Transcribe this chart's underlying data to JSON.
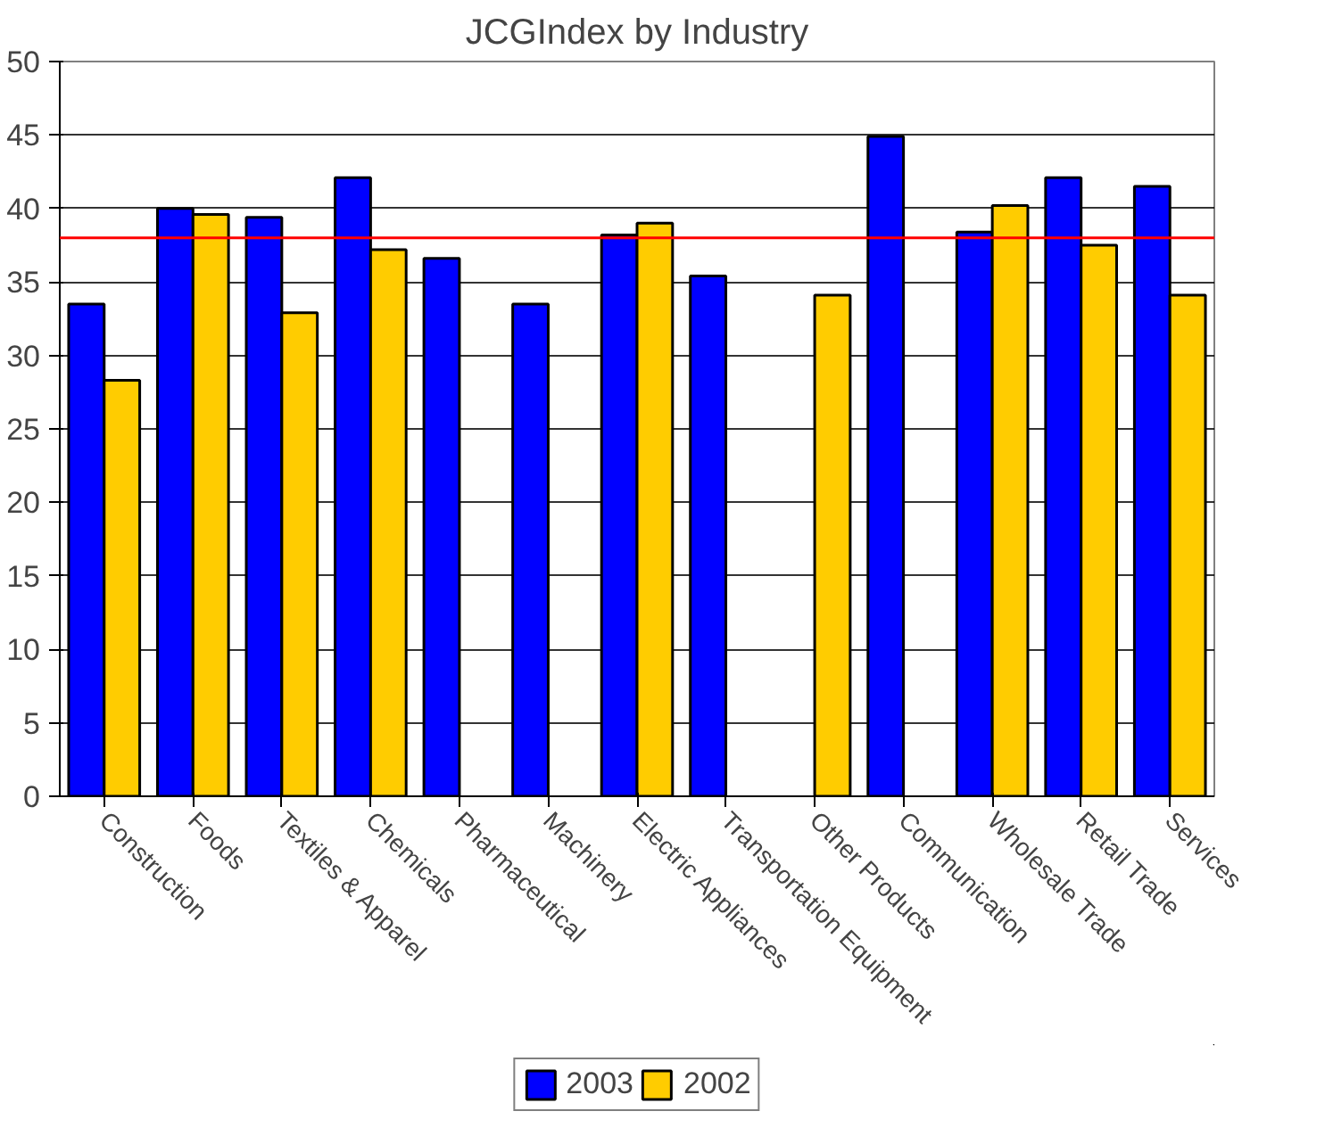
{
  "chart_data": {
    "type": "bar",
    "title": "JCGIndex by Industry",
    "categories": [
      "Construction",
      "Foods",
      "Textiles & Apparel",
      "Chemicals",
      "Pharmaceutical",
      "Machinery",
      "Electric Appliances",
      "Transportation Equipment",
      "Other Products",
      "Communication",
      "Wholesale Trade",
      "Retail Trade",
      "Services"
    ],
    "series": [
      {
        "name": "2003",
        "color": "#0000ff",
        "values": [
          33.5,
          40.0,
          39.4,
          42.1,
          36.6,
          33.5,
          38.2,
          35.4,
          null,
          44.9,
          38.4,
          42.1,
          41.5
        ]
      },
      {
        "name": "2002",
        "color": "#ffcc00",
        "values": [
          28.3,
          39.6,
          32.9,
          37.2,
          null,
          null,
          39.0,
          null,
          34.1,
          null,
          40.2,
          37.5,
          34.1
        ]
      }
    ],
    "ylim": [
      0,
      50
    ],
    "yticks": [
      0,
      5,
      10,
      15,
      20,
      25,
      30,
      35,
      40,
      45,
      50
    ],
    "grid": "y",
    "legend": "bottom",
    "ref_lines": [
      {
        "axis": "y",
        "value": 38.0,
        "color": "#ff0000"
      }
    ]
  }
}
